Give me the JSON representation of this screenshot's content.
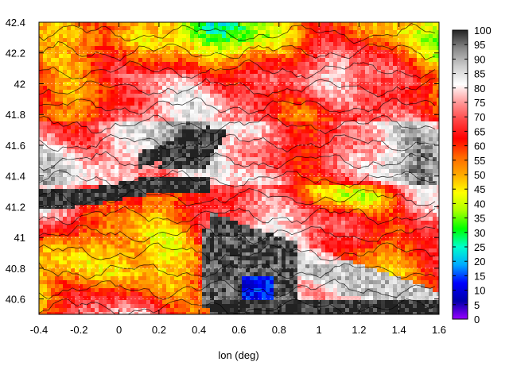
{
  "chart_data": {
    "type": "heatmap",
    "title": "",
    "xlabel": "lon (deg)",
    "ylabel": "",
    "xlim": [
      -0.4,
      1.6
    ],
    "ylim": [
      40.5,
      42.4
    ],
    "xticks": [
      "-0.4",
      "-0.2",
      "0",
      "0.2",
      "0.4",
      "0.6",
      "0.8",
      "1",
      "1.2",
      "1.4",
      "1.6"
    ],
    "yticks": [
      "40.6",
      "40.8",
      "41",
      "41.2",
      "41.4",
      "41.6",
      "41.8",
      "42",
      "42.2",
      "42.4"
    ],
    "colorbar": {
      "range": [
        0,
        100
      ],
      "ticks": [
        "0",
        "5",
        "10",
        "15",
        "20",
        "25",
        "30",
        "35",
        "40",
        "45",
        "50",
        "55",
        "60",
        "65",
        "70",
        "75",
        "80",
        "85",
        "90",
        "95",
        "100"
      ],
      "palette": [
        "#9900ff",
        "#0000aa",
        "#0000ff",
        "#00aaff",
        "#00ffcc",
        "#00ff00",
        "#aaff00",
        "#ffff00",
        "#ffaa00",
        "#ff6600",
        "#ff0000",
        "#ff4444",
        "#ff9999",
        "#ffffff",
        "#cccccc",
        "#888888",
        "#222222"
      ]
    },
    "grid": true,
    "contours": true
  }
}
